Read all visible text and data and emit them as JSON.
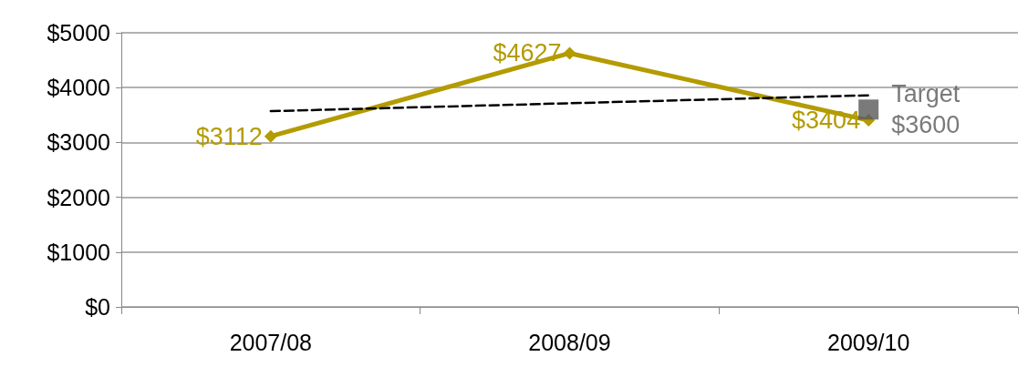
{
  "chart_data": {
    "type": "line",
    "categories": [
      "2007/08",
      "2008/09",
      "2009/10"
    ],
    "series": [
      {
        "color": "#b39b00",
        "values": [
          3112,
          4627,
          3404
        ],
        "value_labels": [
          "$3112",
          "$4627",
          "$3404"
        ],
        "marker": "diamond",
        "line_style": "solid"
      },
      {
        "type": "line",
        "color": "#000000",
        "values": [
          3570,
          3715,
          3860
        ],
        "marker": "none",
        "line_style": "dashed"
      },
      {
        "type": "scatter",
        "name": "Target",
        "color": "#595959",
        "values": [
          null,
          null,
          3600
        ],
        "value_labels": [
          null,
          null,
          "$3600"
        ],
        "marker": "square"
      }
    ],
    "ylim": [
      0,
      5000
    ],
    "yticks": [
      {
        "value": 0,
        "label": "$0"
      },
      {
        "value": 1000,
        "label": "$1000"
      },
      {
        "value": 2000,
        "label": "$2000"
      },
      {
        "value": 3000,
        "label": "$3000"
      },
      {
        "value": 4000,
        "label": "$4000"
      },
      {
        "value": 5000,
        "label": "$5000"
      }
    ],
    "grid": "y",
    "legend": false
  }
}
